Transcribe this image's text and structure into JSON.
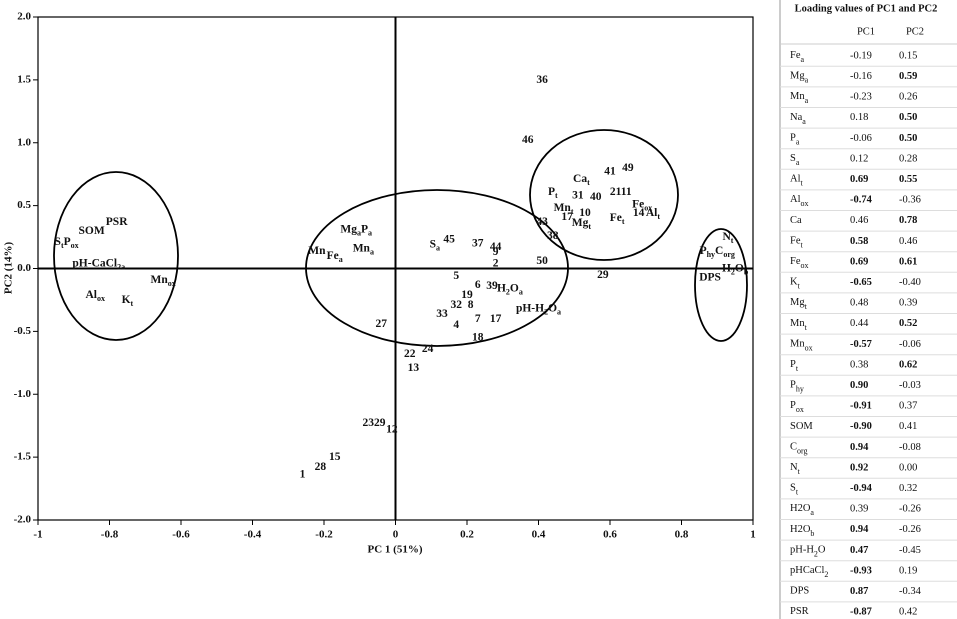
{
  "chart_data": {
    "type": "scatter",
    "x_label": "PC 1 (51%)",
    "y_label": "PC2 (14%)",
    "xlim": [
      -1,
      1
    ],
    "ylim": [
      -2,
      2
    ],
    "xticks": [
      -1,
      -0.8,
      -0.6,
      -0.4,
      -0.2,
      0,
      0.2,
      0.4,
      0.6,
      0.8,
      1
    ],
    "yticks": [
      {
        "value": 2,
        "label": "2.0"
      },
      1.5,
      {
        "value": 1,
        "label": "1.0"
      },
      0.5,
      {
        "value": 0,
        "label": "0.0"
      },
      -0.5,
      {
        "value": -1,
        "label": "-1.0"
      },
      -1.5,
      {
        "value": -2,
        "label": "-2.0"
      }
    ],
    "color": "#111111",
    "points": [
      {
        "x": 0.41,
        "y": 1.5,
        "label": [
          "36"
        ]
      },
      {
        "x": 0.37,
        "y": 1.02,
        "label": [
          "46"
        ]
      },
      {
        "x": 0.52,
        "y": 0.71,
        "label": [
          "Ca",
          "t"
        ]
      },
      {
        "x": 0.6,
        "y": 0.77,
        "label": [
          "41"
        ]
      },
      {
        "x": 0.65,
        "y": 0.8,
        "label": [
          "49"
        ]
      },
      {
        "x": 0.44,
        "y": 0.61,
        "label": [
          "P",
          "t"
        ]
      },
      {
        "x": 0.51,
        "y": 0.58,
        "label": [
          "31"
        ]
      },
      {
        "x": 0.56,
        "y": 0.57,
        "label": [
          "40"
        ]
      },
      {
        "x": 0.63,
        "y": 0.61,
        "label": [
          "2111"
        ]
      },
      {
        "x": 0.69,
        "y": 0.51,
        "label": [
          "Fe",
          "ox"
        ]
      },
      {
        "x": 0.47,
        "y": 0.48,
        "label": [
          "Mn",
          "t"
        ]
      },
      {
        "x": 0.48,
        "y": 0.41,
        "label": [
          "17"
        ]
      },
      {
        "x": 0.53,
        "y": 0.44,
        "label": [
          "10"
        ]
      },
      {
        "x": 0.52,
        "y": 0.36,
        "label": [
          "Mg",
          "t"
        ]
      },
      {
        "x": 0.62,
        "y": 0.4,
        "label": [
          "Fe",
          "t"
        ]
      },
      {
        "x": 0.68,
        "y": 0.44,
        "label": [
          "14"
        ]
      },
      {
        "x": 0.72,
        "y": 0.44,
        "label": [
          "Al",
          "t"
        ]
      },
      {
        "x": 0.41,
        "y": 0.37,
        "label": [
          "43"
        ]
      },
      {
        "x": 0.44,
        "y": 0.26,
        "label": [
          "38"
        ]
      },
      {
        "x": 0.41,
        "y": 0.06,
        "label": [
          "50"
        ]
      },
      {
        "x": 0.58,
        "y": -0.05,
        "label": [
          "29"
        ]
      },
      {
        "x": 0.11,
        "y": 0.19,
        "label": [
          "S",
          "a"
        ]
      },
      {
        "x": 0.15,
        "y": 0.23,
        "label": [
          "45"
        ]
      },
      {
        "x": 0.23,
        "y": 0.2,
        "label": [
          "37"
        ]
      },
      {
        "x": 0.28,
        "y": 0.17,
        "label": [
          "44"
        ]
      },
      {
        "x": 0.28,
        "y": 0.13,
        "label": [
          "9"
        ]
      },
      {
        "x": 0.28,
        "y": 0.04,
        "label": [
          "2"
        ]
      },
      {
        "x": 0.17,
        "y": -0.06,
        "label": [
          "5"
        ]
      },
      {
        "x": 0.23,
        "y": -0.13,
        "label": [
          "6"
        ]
      },
      {
        "x": 0.2,
        "y": -0.21,
        "label": [
          "19"
        ]
      },
      {
        "x": 0.27,
        "y": -0.14,
        "label": [
          "39"
        ]
      },
      {
        "x": 0.32,
        "y": -0.16,
        "label": [
          "H",
          "2",
          "O",
          "a"
        ]
      },
      {
        "x": 0.17,
        "y": -0.29,
        "label": [
          "32"
        ]
      },
      {
        "x": 0.21,
        "y": -0.29,
        "label": [
          "8"
        ]
      },
      {
        "x": 0.13,
        "y": -0.36,
        "label": [
          "33"
        ]
      },
      {
        "x": 0.4,
        "y": -0.32,
        "label": [
          "pH-H",
          "2",
          "O",
          "a"
        ]
      },
      {
        "x": 0.23,
        "y": -0.4,
        "label": [
          "7"
        ]
      },
      {
        "x": 0.28,
        "y": -0.4,
        "label": [
          "17"
        ]
      },
      {
        "x": 0.17,
        "y": -0.45,
        "label": [
          "4"
        ]
      },
      {
        "x": 0.23,
        "y": -0.55,
        "label": [
          "18"
        ]
      },
      {
        "x": -0.04,
        "y": -0.44,
        "label": [
          "27"
        ]
      },
      {
        "x": 0.09,
        "y": -0.64,
        "label": [
          "24"
        ]
      },
      {
        "x": 0.04,
        "y": -0.68,
        "label": [
          "22"
        ]
      },
      {
        "x": 0.05,
        "y": -0.79,
        "label": [
          "13"
        ]
      },
      {
        "x": -0.06,
        "y": -1.23,
        "label": [
          "2329"
        ]
      },
      {
        "x": -0.01,
        "y": -1.28,
        "label": [
          "12"
        ]
      },
      {
        "x": -0.17,
        "y": -1.5,
        "label": [
          "15"
        ]
      },
      {
        "x": -0.21,
        "y": -1.58,
        "label": [
          "28"
        ]
      },
      {
        "x": -0.26,
        "y": -1.64,
        "label": [
          "1"
        ]
      },
      {
        "x": -0.11,
        "y": 0.31,
        "label": [
          "Mg",
          "a",
          "P",
          "a"
        ]
      },
      {
        "x": -0.09,
        "y": 0.16,
        "label": [
          "Mn",
          "a"
        ]
      },
      {
        "x": -0.22,
        "y": 0.14,
        "label": [
          "Mn"
        ]
      },
      {
        "x": -0.17,
        "y": 0.1,
        "label": [
          "Fe",
          "a"
        ]
      },
      {
        "x": -0.92,
        "y": 0.21,
        "label": [
          "S",
          "t",
          "P",
          "ox"
        ]
      },
      {
        "x": -0.85,
        "y": 0.3,
        "label": [
          "SOM"
        ]
      },
      {
        "x": -0.78,
        "y": 0.37,
        "label": [
          "PSR"
        ]
      },
      {
        "x": -0.83,
        "y": 0.04,
        "label": [
          "pH-CaCl",
          "2a"
        ]
      },
      {
        "x": -0.65,
        "y": -0.09,
        "label": [
          "Mn",
          "ox"
        ]
      },
      {
        "x": -0.84,
        "y": -0.21,
        "label": [
          "Al",
          "ox"
        ]
      },
      {
        "x": -0.75,
        "y": -0.25,
        "label": [
          "K",
          "t"
        ]
      },
      {
        "x": 0.93,
        "y": 0.25,
        "label": [
          "N",
          "t"
        ]
      },
      {
        "x": 0.9,
        "y": 0.14,
        "label": [
          "P",
          "hy",
          "C",
          "org"
        ]
      },
      {
        "x": 0.95,
        "y": 0.0,
        "label": [
          "H",
          "2",
          "O",
          "b"
        ]
      },
      {
        "x": 0.88,
        "y": -0.07,
        "label": [
          "DPS"
        ]
      }
    ]
  },
  "table": {
    "title": "Loading values of PC1 and PC2",
    "columns": [
      "PC1",
      "PC2"
    ],
    "rows": [
      {
        "label": [
          "Fe",
          "a"
        ],
        "values": [
          "-0.19",
          "0.15"
        ],
        "bold": [
          false,
          false
        ]
      },
      {
        "label": [
          "Mg",
          "a"
        ],
        "values": [
          "-0.16",
          "0.59"
        ],
        "bold": [
          false,
          true
        ]
      },
      {
        "label": [
          "Mn",
          "a"
        ],
        "values": [
          "-0.23",
          "0.26"
        ],
        "bold": [
          false,
          false
        ]
      },
      {
        "label": [
          "Na",
          "a"
        ],
        "values": [
          "0.18",
          "0.50"
        ],
        "bold": [
          false,
          true
        ]
      },
      {
        "label": [
          "P",
          "a"
        ],
        "values": [
          "-0.06",
          "0.50"
        ],
        "bold": [
          false,
          true
        ]
      },
      {
        "label": [
          "S",
          "a"
        ],
        "values": [
          "0.12",
          "0.28"
        ],
        "bold": [
          false,
          false
        ]
      },
      {
        "label": [
          "Al",
          "t"
        ],
        "values": [
          "0.69",
          "0.55"
        ],
        "bold": [
          true,
          true
        ]
      },
      {
        "label": [
          "Al",
          "ox"
        ],
        "values": [
          "-0.74",
          "-0.36"
        ],
        "bold": [
          true,
          false
        ]
      },
      {
        "label": [
          "Ca"
        ],
        "values": [
          "0.46",
          "0.78"
        ],
        "bold": [
          false,
          true
        ]
      },
      {
        "label": [
          "Fe",
          "t"
        ],
        "values": [
          "0.58",
          "0.46"
        ],
        "bold": [
          true,
          false
        ]
      },
      {
        "label": [
          "Fe",
          "ox"
        ],
        "values": [
          "0.69",
          "0.61"
        ],
        "bold": [
          true,
          true
        ]
      },
      {
        "label": [
          "K",
          "t"
        ],
        "values": [
          "-0.65",
          "-0.40"
        ],
        "bold": [
          true,
          false
        ]
      },
      {
        "label": [
          "Mg",
          "t"
        ],
        "values": [
          "0.48",
          "0.39"
        ],
        "bold": [
          false,
          false
        ]
      },
      {
        "label": [
          "Mn",
          "t"
        ],
        "values": [
          "0.44",
          "0.52"
        ],
        "bold": [
          false,
          true
        ]
      },
      {
        "label": [
          "Mn",
          "ox"
        ],
        "values": [
          "-0.57",
          "-0.06"
        ],
        "bold": [
          true,
          false
        ]
      },
      {
        "label": [
          "P",
          "t"
        ],
        "values": [
          "0.38",
          "0.62"
        ],
        "bold": [
          false,
          true
        ]
      },
      {
        "label": [
          "P",
          "hy"
        ],
        "values": [
          "0.90",
          "-0.03"
        ],
        "bold": [
          true,
          false
        ]
      },
      {
        "label": [
          "P",
          "ox"
        ],
        "values": [
          "-0.91",
          "0.37"
        ],
        "bold": [
          true,
          false
        ]
      },
      {
        "label": [
          "SOM"
        ],
        "values": [
          "-0.90",
          "0.41"
        ],
        "bold": [
          true,
          false
        ]
      },
      {
        "label": [
          "C",
          "org"
        ],
        "values": [
          "0.94",
          "-0.08"
        ],
        "bold": [
          true,
          false
        ]
      },
      {
        "label": [
          "N",
          "t"
        ],
        "values": [
          "0.92",
          "0.00"
        ],
        "bold": [
          true,
          false
        ]
      },
      {
        "label": [
          "S",
          "t"
        ],
        "values": [
          "-0.94",
          "0.32"
        ],
        "bold": [
          true,
          false
        ]
      },
      {
        "label": [
          "H2O",
          "a"
        ],
        "values": [
          "0.39",
          "-0.26"
        ],
        "bold": [
          false,
          false
        ]
      },
      {
        "label": [
          "H2O",
          "b"
        ],
        "values": [
          "0.94",
          "-0.26"
        ],
        "bold": [
          true,
          false
        ]
      },
      {
        "label": [
          "pH-H",
          "2",
          "O"
        ],
        "values": [
          "0.47",
          "-0.45"
        ],
        "bold": [
          true,
          false
        ]
      },
      {
        "label": [
          "pHCaCl",
          "2"
        ],
        "values": [
          "-0.93",
          "0.19"
        ],
        "bold": [
          true,
          false
        ]
      },
      {
        "label": [
          "DPS"
        ],
        "values": [
          "0.87",
          "-0.34"
        ],
        "bold": [
          true,
          false
        ]
      },
      {
        "label": [
          "PSR"
        ],
        "values": [
          "-0.87",
          "0.42"
        ],
        "bold": [
          true,
          false
        ]
      }
    ]
  }
}
